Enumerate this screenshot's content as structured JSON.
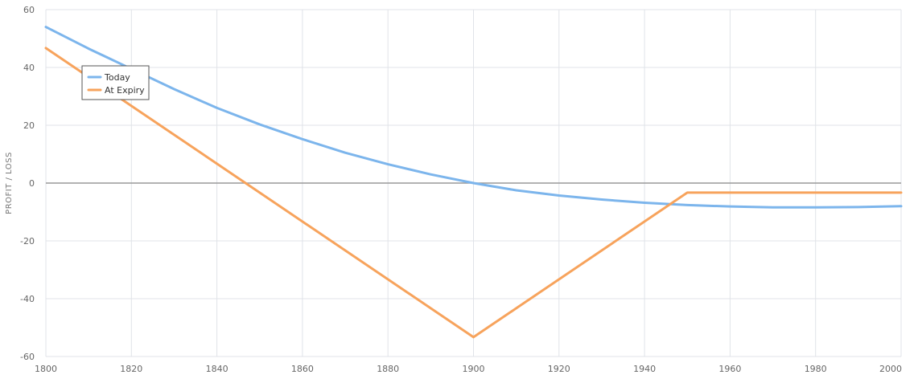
{
  "chart_data": {
    "type": "line",
    "title": "",
    "xlabel": "",
    "ylabel": "PROFIT / LOSS",
    "xlim": [
      1800,
      2000
    ],
    "ylim": [
      -60,
      60
    ],
    "xticks": [
      1800,
      1820,
      1840,
      1860,
      1880,
      1900,
      1920,
      1940,
      1960,
      1980,
      2000
    ],
    "yticks": [
      60,
      40,
      20,
      0,
      -20,
      -40,
      -60
    ],
    "grid": true,
    "legend_position": "top-left",
    "series": [
      {
        "name": "Today",
        "color": "#7cb5ec",
        "x": [
          1800,
          1810,
          1820,
          1830,
          1840,
          1850,
          1860,
          1870,
          1880,
          1890,
          1900,
          1910,
          1920,
          1930,
          1940,
          1950,
          1960,
          1970,
          1980,
          1990,
          2000
        ],
        "y": [
          54,
          46.5,
          39.5,
          32.5,
          26,
          20.3,
          15.2,
          10.5,
          6.5,
          3,
          0,
          -2.5,
          -4.3,
          -5.7,
          -6.8,
          -7.6,
          -8.1,
          -8.4,
          -8.4,
          -8.3,
          -8.0
        ]
      },
      {
        "name": "At Expiry",
        "color": "#f7a35c",
        "x": [
          1800,
          1900,
          1950,
          2000
        ],
        "y": [
          46.7,
          -53.3,
          -3.3,
          -3.3
        ]
      }
    ]
  }
}
